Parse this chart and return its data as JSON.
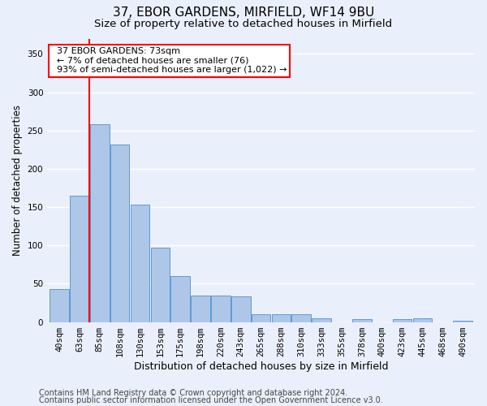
{
  "title1": "37, EBOR GARDENS, MIRFIELD, WF14 9BU",
  "title2": "Size of property relative to detached houses in Mirfield",
  "xlabel": "Distribution of detached houses by size in Mirfield",
  "ylabel": "Number of detached properties",
  "footer1": "Contains HM Land Registry data © Crown copyright and database right 2024.",
  "footer2": "Contains public sector information licensed under the Open Government Licence v3.0.",
  "categories": [
    "40sqm",
    "63sqm",
    "85sqm",
    "108sqm",
    "130sqm",
    "153sqm",
    "175sqm",
    "198sqm",
    "220sqm",
    "243sqm",
    "265sqm",
    "288sqm",
    "310sqm",
    "333sqm",
    "355sqm",
    "378sqm",
    "400sqm",
    "423sqm",
    "445sqm",
    "468sqm",
    "490sqm"
  ],
  "values": [
    43,
    165,
    258,
    232,
    153,
    97,
    60,
    35,
    35,
    33,
    10,
    10,
    10,
    5,
    0,
    4,
    0,
    4,
    5,
    0,
    2
  ],
  "bar_color": "#aec6e8",
  "bar_edge_color": "#5b9bd5",
  "vline_x": 1.5,
  "vline_color": "red",
  "annotation_text": "  37 EBOR GARDENS: 73sqm\n  ← 7% of detached houses are smaller (76)\n  93% of semi-detached houses are larger (1,022) →",
  "annotation_box_color": "white",
  "annotation_box_edge": "red",
  "ylim": [
    0,
    370
  ],
  "yticks": [
    0,
    50,
    100,
    150,
    200,
    250,
    300,
    350
  ],
  "background_color": "#eaf0fb",
  "grid_color": "white",
  "title1_fontsize": 11,
  "title2_fontsize": 9.5,
  "xlabel_fontsize": 9,
  "ylabel_fontsize": 8.5,
  "tick_fontsize": 7.5,
  "annotation_fontsize": 8,
  "footer_fontsize": 7
}
